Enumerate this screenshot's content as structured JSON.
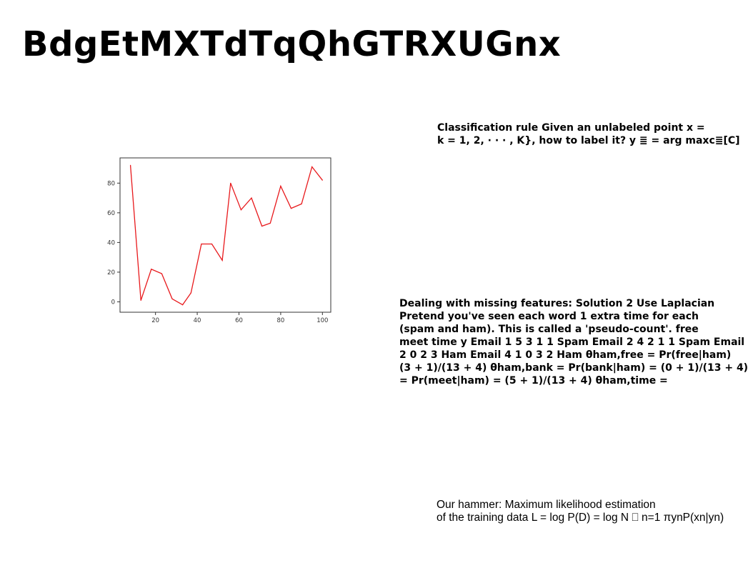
{
  "page": {
    "title": "BdgEtMXTdTqQhGTRXUGnx"
  },
  "text_blocks": {
    "classification": [
      "Classification rule Given an unlabeled point x =",
      "k = 1, 2, · · · , K}, how to label it? y ≣ = arg maxc≣[C]"
    ],
    "missing_features": [
      "Dealing with missing features: Solution 2 Use Laplacian",
      "Pretend you've seen each word 1 extra time for each",
      "(spam and ham). This is called a 'pseudo-count'. free",
      "meet time y Email 1 5 3 1 1 Spam Email 2 4 2 1 1 Spam Email",
      "2 0 2 3 Ham Email 4 1 0 3 2 Ham θham,free = Pr(free|ham)",
      "(3 + 1)/(13 + 4) θham,bank = Pr(bank|ham) = (0 + 1)/(13 + 4)",
      "= Pr(meet|ham) = (5 + 1)/(13 + 4) θham,time ="
    ],
    "hammer": [
      "Our hammer: Maximum likelihood estimation",
      "of the training data L = log P(D) = log N ⎕ n=1 πynP(xn|yn)"
    ]
  },
  "chart_data": {
    "type": "line",
    "title": "",
    "xlabel": "",
    "ylabel": "",
    "color": "#e8191c",
    "grid": false,
    "xlim": [
      3,
      104
    ],
    "ylim": [
      -7,
      97
    ],
    "xticks": [
      20,
      40,
      60,
      80,
      100
    ],
    "yticks": [
      0,
      20,
      40,
      60,
      80
    ],
    "x": [
      8,
      13,
      18,
      23,
      28,
      33,
      37,
      42,
      47,
      52,
      56,
      61,
      66,
      71,
      75,
      80,
      85,
      90,
      95,
      100
    ],
    "y": [
      92,
      1,
      22,
      19,
      2,
      -2,
      6,
      39,
      39,
      28,
      80,
      62,
      70,
      51,
      53,
      78,
      63,
      66,
      91,
      82
    ]
  }
}
